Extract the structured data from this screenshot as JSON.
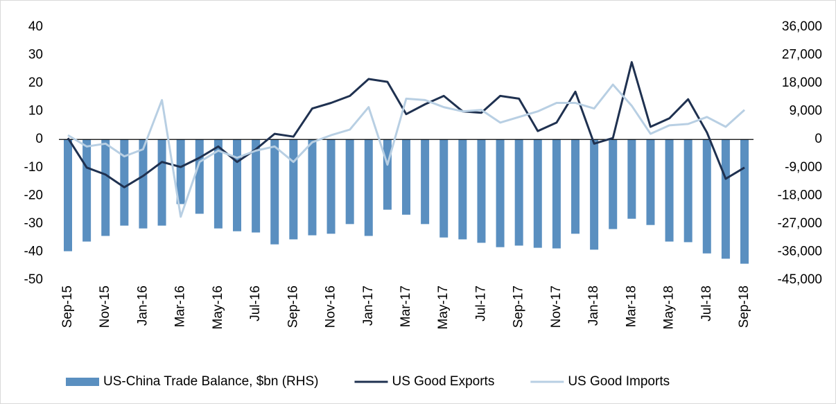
{
  "chart_data": {
    "type": "bar-line",
    "categories": [
      "Sep-15",
      null,
      "Nov-15",
      null,
      "Jan-16",
      null,
      "Mar-16",
      null,
      "May-16",
      null,
      "Jul-16",
      null,
      "Sep-16",
      null,
      "Nov-16",
      null,
      "Jan-17",
      null,
      "Mar-17",
      null,
      "May-17",
      null,
      "Jul-17",
      null,
      "Sep-17",
      null,
      "Nov-17",
      null,
      "Jan-18",
      null,
      "Mar-18",
      null,
      "May-18",
      null,
      "Jul-18",
      null,
      "Sep-18"
    ],
    "series": [
      {
        "name": "US-China Trade Balance, $bn (RHS)",
        "type": "bar",
        "axis": "y2",
        "color": "#5a8fc0",
        "values": [
          -35800,
          -32700,
          -30900,
          -27600,
          -28500,
          -27600,
          -20700,
          -23800,
          -28500,
          -29400,
          -29800,
          -33600,
          -32000,
          -30700,
          -30200,
          -27100,
          -30900,
          -22500,
          -24100,
          -27100,
          -31400,
          -32000,
          -33100,
          -34500,
          -34000,
          -34700,
          -34900,
          -30200,
          -35300,
          -28700,
          -25400,
          -27400,
          -32700,
          -32900,
          -36500,
          -38200,
          -39800
        ]
      },
      {
        "name": "US Good Exports",
        "type": "line",
        "color": "#1f3150",
        "values": [
          0.5,
          -10,
          -12.5,
          -17,
          -13,
          -8,
          -9.8,
          -6.5,
          -2.5,
          -8,
          -3.5,
          2,
          1,
          11,
          13,
          15.5,
          21.5,
          20.5,
          9,
          12.5,
          15.5,
          10,
          9.5,
          15.5,
          14.5,
          3,
          6,
          17,
          -1.5,
          0.5,
          27.5,
          4.5,
          7.5,
          14.3,
          2.5,
          -14,
          -10
        ]
      },
      {
        "name": "US Good Imports",
        "type": "line",
        "color": "#b8cfe3",
        "values": [
          1.5,
          -2.5,
          -1.5,
          -6,
          -3.5,
          14,
          -27.5,
          -8,
          -4,
          -6.5,
          -4,
          -2.5,
          -8,
          -1,
          1.5,
          3.5,
          11.5,
          -9,
          14.5,
          14,
          11.5,
          10,
          10.5,
          6,
          8,
          10,
          13,
          13,
          11,
          19.5,
          12,
          2,
          5,
          5.5,
          8,
          4.5,
          10.5
        ]
      }
    ],
    "ylim": [
      -50,
      40
    ],
    "yticks": [
      -50,
      -40,
      -30,
      -20,
      -10,
      0,
      10,
      20,
      30,
      40
    ],
    "y2lim": [
      -45000,
      36000
    ],
    "y2ticks": [
      {
        "value": -45000,
        "label": "-45,000"
      },
      {
        "value": -36000,
        "label": "-36,000"
      },
      {
        "value": -27000,
        "label": "-27,000"
      },
      {
        "value": -18000,
        "label": "-18,000"
      },
      {
        "value": -9000,
        "label": "-9,000"
      },
      0,
      {
        "value": 9000,
        "label": "9,000"
      },
      {
        "value": 18000,
        "label": "18,000"
      },
      {
        "value": 27000,
        "label": "27,000"
      },
      {
        "value": 36000,
        "label": "36,000"
      }
    ],
    "grid": false,
    "legend": "bottom"
  }
}
